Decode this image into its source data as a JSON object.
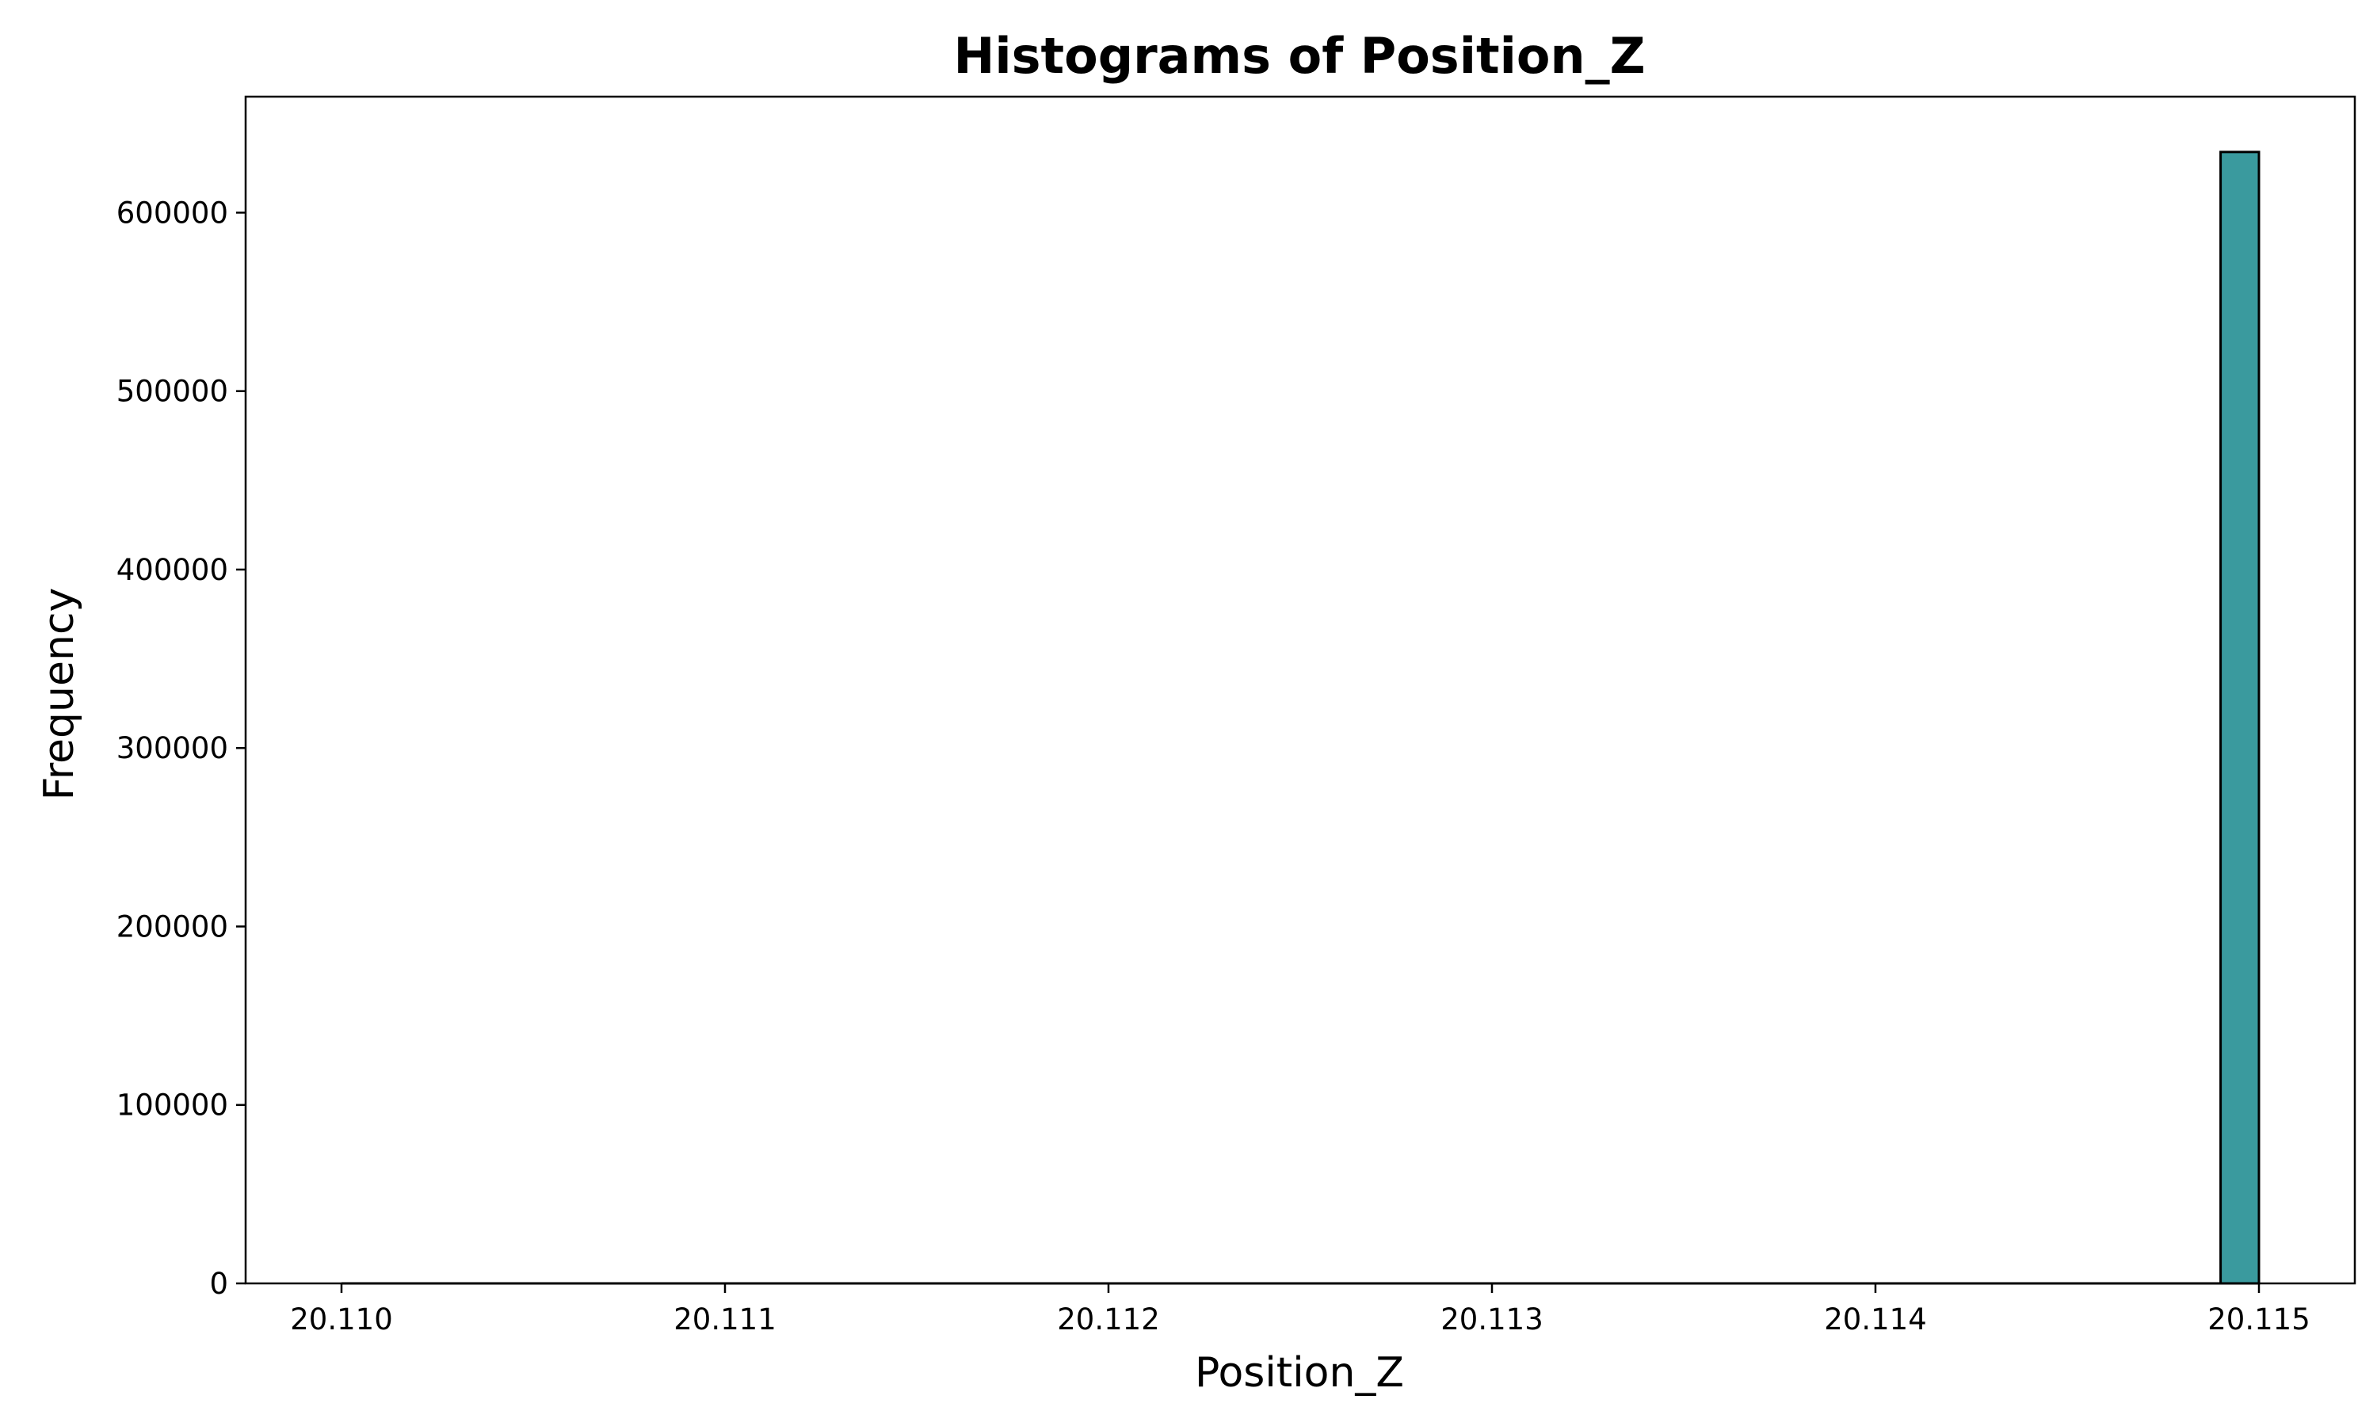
{
  "chart_data": {
    "type": "bar",
    "title": "Histograms of Position_Z",
    "xlabel": "Position_Z",
    "ylabel": "Frequency",
    "xlim": [
      20.10975,
      20.11525
    ],
    "ylim": [
      0,
      665000
    ],
    "xticks": [
      "20.110",
      "20.111",
      "20.112",
      "20.113",
      "20.114",
      "20.115"
    ],
    "xtick_values": [
      20.11,
      20.111,
      20.112,
      20.113,
      20.114,
      20.115
    ],
    "yticks": [
      "0",
      "100000",
      "200000",
      "300000",
      "400000",
      "500000",
      "600000"
    ],
    "ytick_values": [
      0,
      100000,
      200000,
      300000,
      400000,
      500000,
      600000
    ],
    "bin_width": 0.0001,
    "bins": [
      {
        "x0": 20.1149,
        "x1": 20.115,
        "value": 634000
      }
    ],
    "bar_color": "#3a9a9e",
    "edge_color": "#000000",
    "grid": false,
    "legend": "none"
  }
}
